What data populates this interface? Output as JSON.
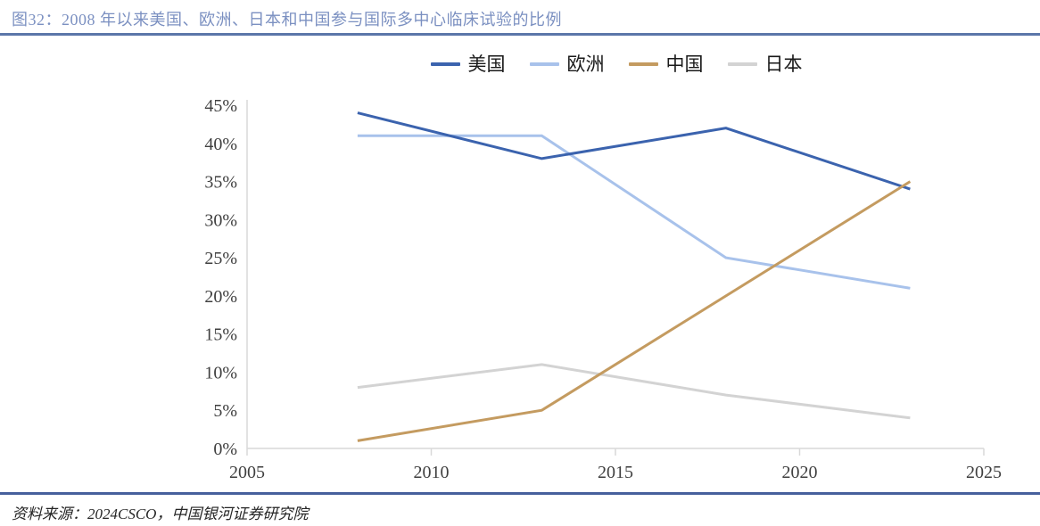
{
  "header": {
    "figure_label": "图32",
    "title": "图32：2008 年以来美国、欧洲、日本和中国参与国际多中心临床试验的比例"
  },
  "source": {
    "text": "资料来源：2024CSCO，中国银河证券研究院"
  },
  "colors": {
    "title_text": "#7B90C1",
    "top_rule": "#5B76A9",
    "bottom_rule": "#46609C",
    "axis_line": "#D9D9D9",
    "tick_label": "#3F3F3F",
    "legend_text": "#1A1A1A",
    "series_us": "#3B63AE",
    "series_europe": "#A8C2EB",
    "series_china": "#C49B60",
    "series_japan": "#D3D3D3"
  },
  "chart_data": {
    "type": "line",
    "title": "2008 年以来美国、欧洲、日本和中国参与国际多中心临床试验的比例",
    "x": [
      2008,
      2013,
      2018,
      2023
    ],
    "series": [
      {
        "name": "美国",
        "color": "#3B63AE",
        "values": [
          44,
          38,
          42,
          34
        ]
      },
      {
        "name": "欧洲",
        "color": "#A8C2EB",
        "values": [
          41,
          41,
          25,
          21
        ]
      },
      {
        "name": "中国",
        "color": "#C49B60",
        "values": [
          1,
          5,
          20,
          35
        ]
      },
      {
        "name": "日本",
        "color": "#D3D3D3",
        "values": [
          8,
          11,
          7,
          4
        ]
      }
    ],
    "xlim": [
      2005,
      2025
    ],
    "ylim": [
      0,
      45
    ],
    "x_ticks": [
      2005,
      2010,
      2015,
      2020,
      2025
    ],
    "y_ticks": [
      0,
      5,
      10,
      15,
      20,
      25,
      30,
      35,
      40,
      45
    ],
    "y_tick_suffix": "%",
    "xlabel": "",
    "ylabel": "",
    "grid": false,
    "legend_position": "top",
    "z_order": [
      3,
      1,
      0,
      2
    ]
  }
}
